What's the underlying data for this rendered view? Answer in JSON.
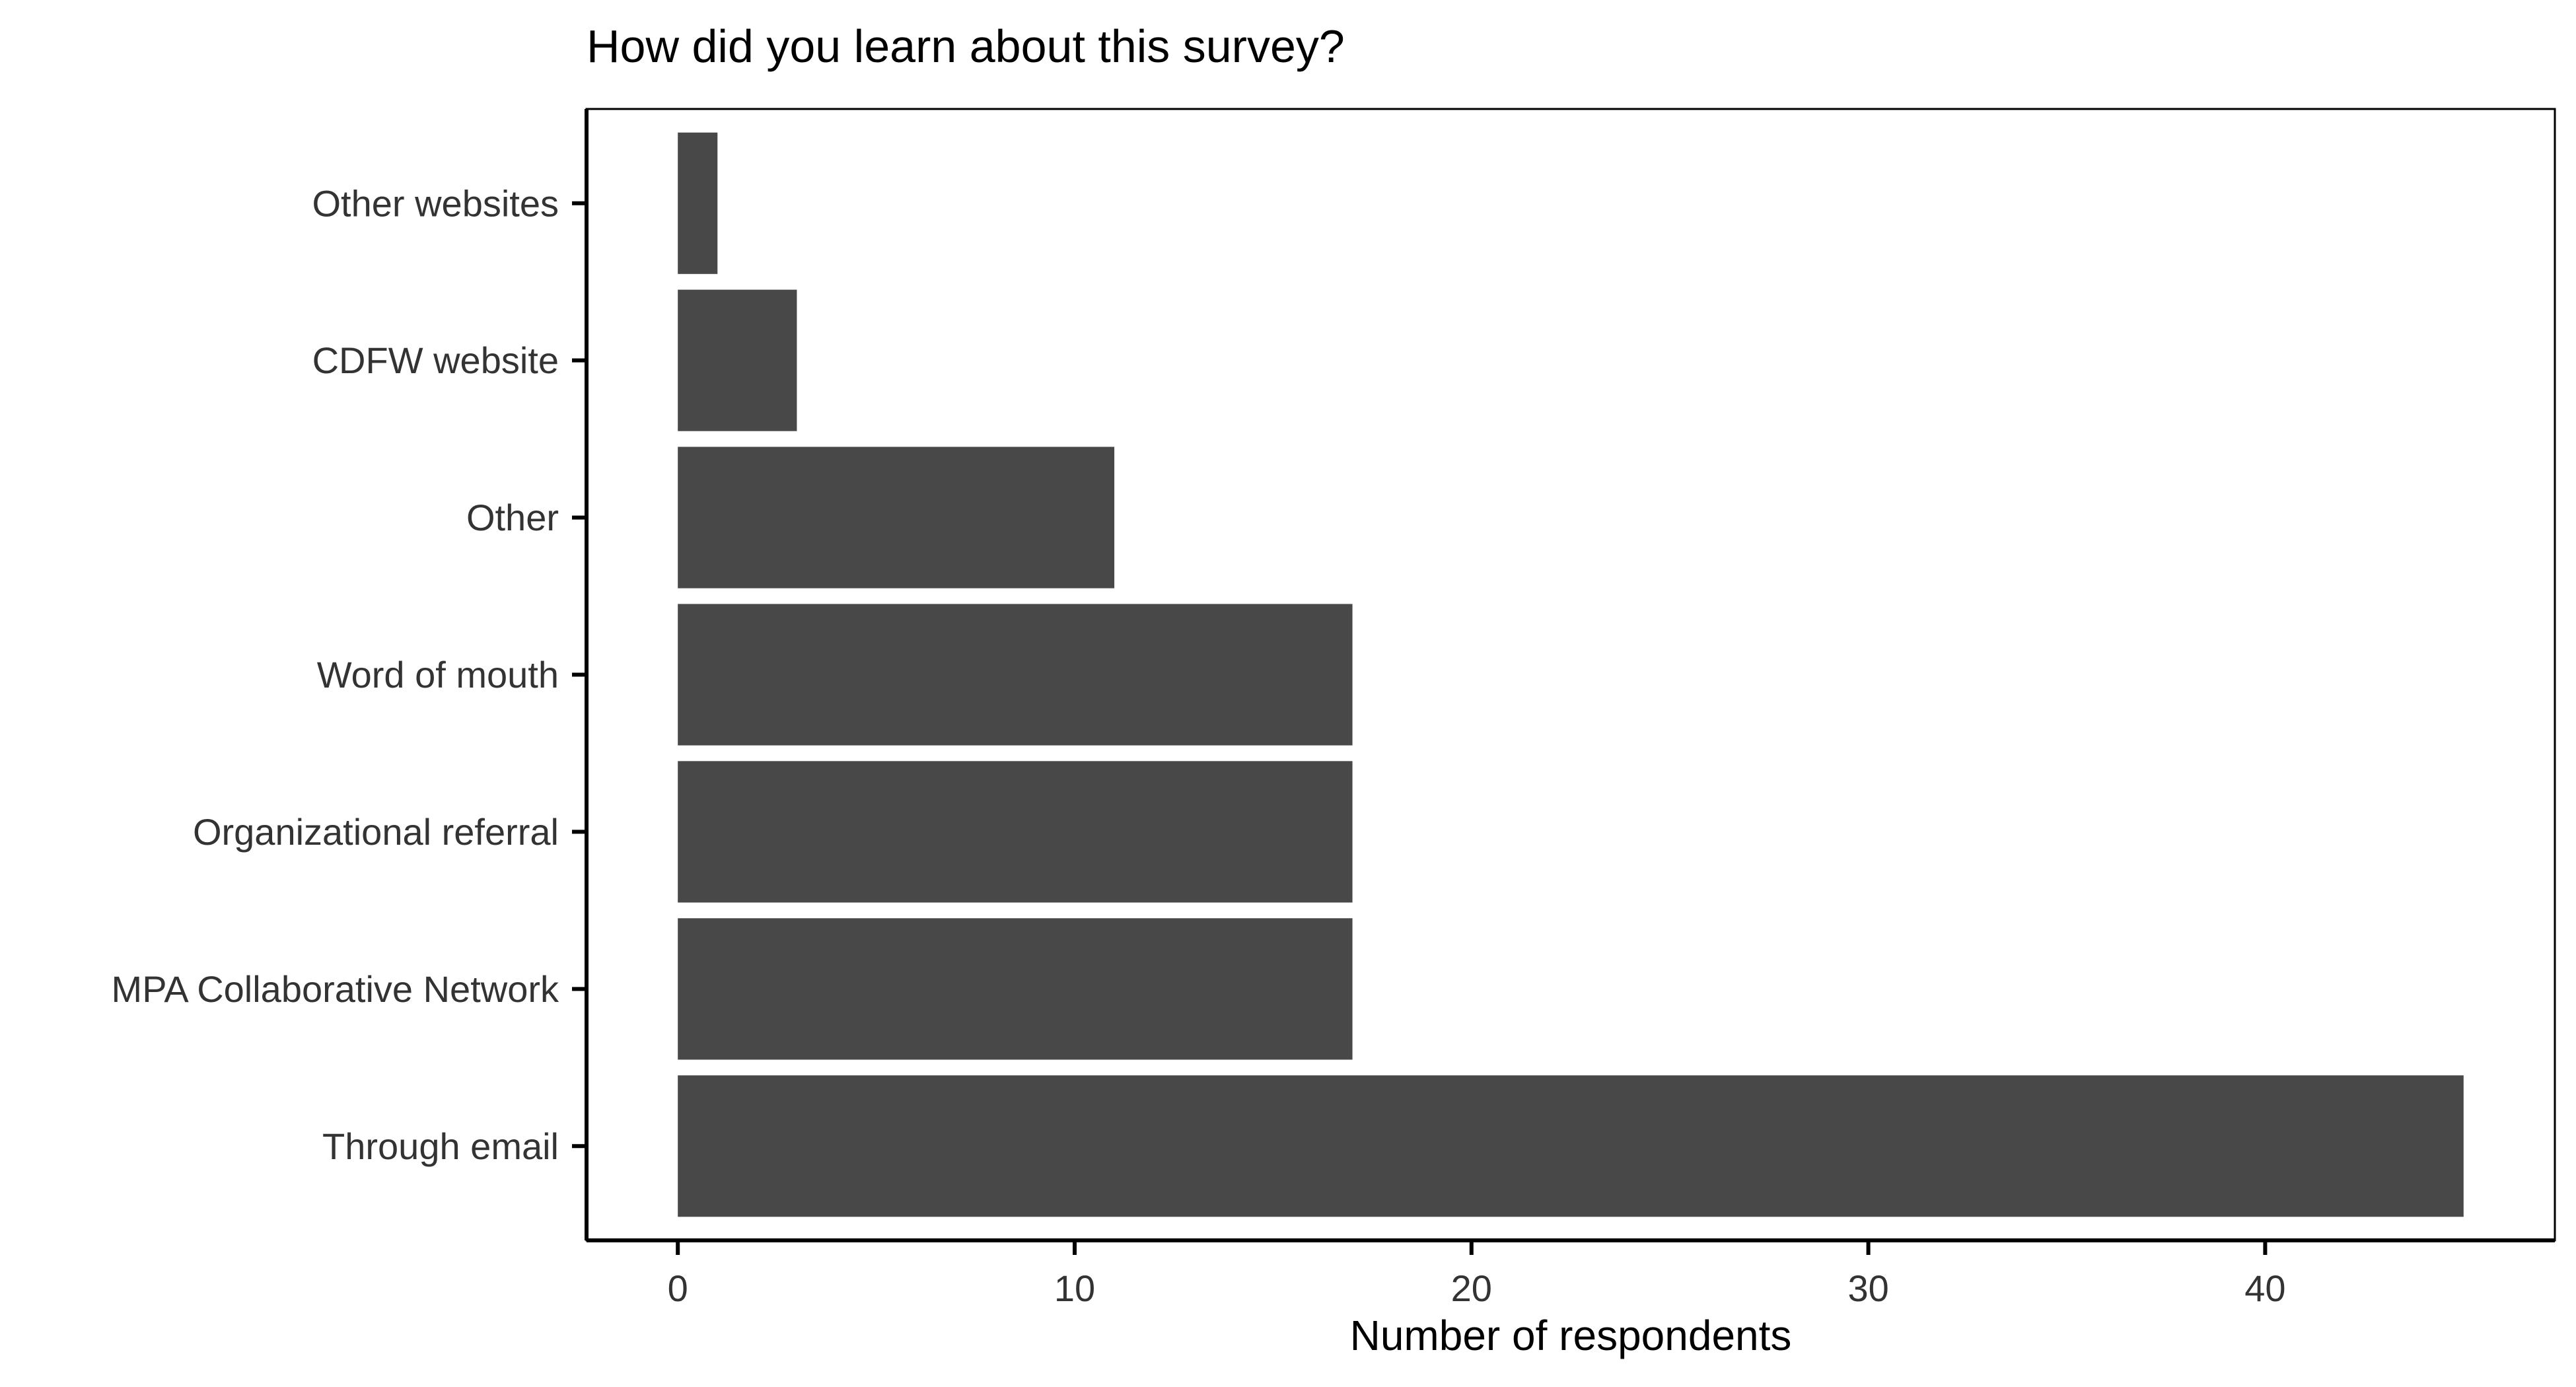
{
  "chart_data": {
    "type": "bar",
    "orientation": "horizontal",
    "title": "How did you learn about this survey?",
    "xlabel": "Number of respondents",
    "ylabel": "",
    "categories": [
      "Through email",
      "MPA Collaborative Network",
      "Organizational referral",
      "Word of mouth",
      "Other",
      "CDFW website",
      "Other websites"
    ],
    "values": [
      45,
      17,
      17,
      17,
      11,
      3,
      1
    ],
    "xlim": [
      -2.3,
      47.3
    ],
    "xticks": [
      0,
      10,
      20,
      30,
      40
    ],
    "grid": false,
    "legend": "none",
    "bar_color": "#484848",
    "axis_color": "#000000",
    "tick_label_color": "#333333"
  }
}
